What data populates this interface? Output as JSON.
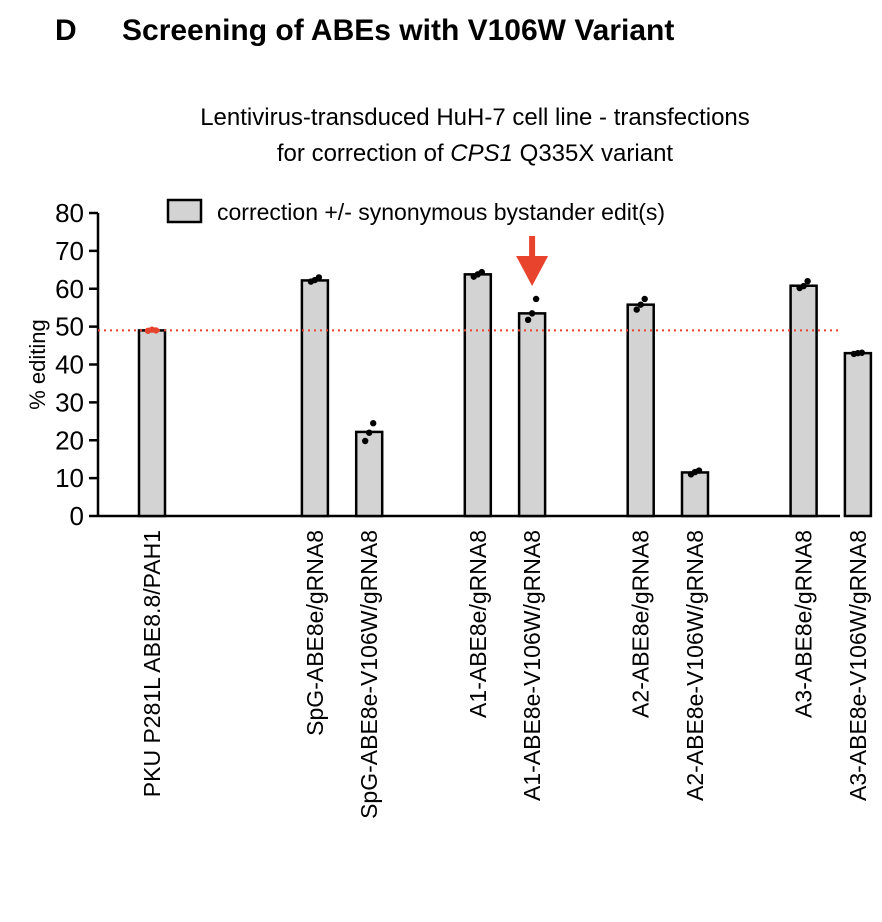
{
  "panel_letter": "D",
  "panel_title": "Screening of ABEs with V106W Variant",
  "subtitle_line1": "Lentivirus-transduced HuH-7 cell line - transfections",
  "subtitle_line2_prefix": "for correction of ",
  "subtitle_line2_gene": "CPS1",
  "subtitle_line2_suffix": " Q335X variant",
  "chart_data": {
    "type": "bar",
    "title": "Lentivirus-transduced HuH-7 cell line - transfections for correction of CPS1 Q335X variant",
    "xlabel": "",
    "ylabel": "% editing",
    "ylim": [
      0,
      80
    ],
    "yticks": [
      0,
      10,
      20,
      30,
      40,
      50,
      60,
      70,
      80
    ],
    "legend": "correction +/- synonymous bystander edit(s)",
    "legend_position": "top",
    "categories": [
      "PKU P281L ABE8.8/PAH1",
      "SpG-ABE8e/gRNA8",
      "SpG-ABE8e-V106W/gRNA8",
      "A1-ABE8e/gRNA8",
      "A1-ABE8e-V106W/gRNA8",
      "A2-ABE8e/gRNA8",
      "A2-ABE8e-V106W/gRNA8",
      "A3-ABE8e/gRNA8",
      "A3-ABE8e-V106W/gRNA8"
    ],
    "slots": [
      0,
      3,
      4,
      6,
      7,
      9,
      10,
      12,
      13
    ],
    "values": [
      49,
      62.2,
      22.2,
      63.8,
      53.5,
      55.8,
      11.5,
      60.8,
      43
    ],
    "points": [
      [
        48.9,
        49.2,
        49.0
      ],
      [
        61.9,
        62.3,
        63.0
      ],
      [
        19.8,
        22.0,
        24.5
      ],
      [
        63.2,
        63.8,
        64.4
      ],
      [
        51.8,
        53.5,
        57.3
      ],
      [
        54.5,
        55.8,
        57.3
      ],
      [
        11.0,
        11.6,
        12.0
      ],
      [
        60.2,
        60.7,
        62.0
      ],
      [
        42.8,
        43.0,
        43.1
      ]
    ],
    "point_colors": [
      "#e8432d",
      "#000000",
      "#000000",
      "#000000",
      "#000000",
      "#000000",
      "#000000",
      "#000000",
      "#000000"
    ],
    "reference_line": 49,
    "reference_color": "#e8432d",
    "highlight_index": 4,
    "arrow_color": "#e8432d",
    "bar_fill": "#d3d3d3"
  }
}
